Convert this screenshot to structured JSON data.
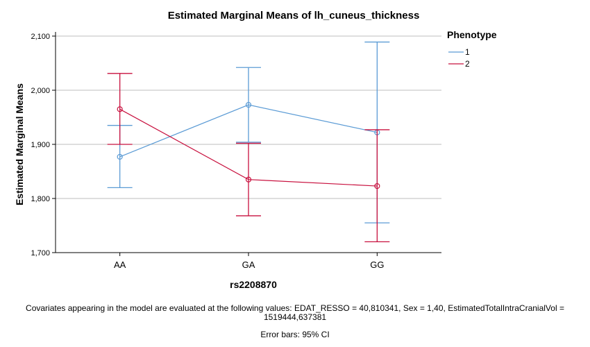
{
  "chart_data": {
    "type": "line",
    "title": "Estimated Marginal Means of lh_cuneus_thickness",
    "xlabel": "rs2208870",
    "ylabel": "Estimated Marginal Means",
    "categories": [
      "AA",
      "GA",
      "GG"
    ],
    "ylim": [
      1700,
      2100
    ],
    "yticks": [
      1700,
      1800,
      1900,
      2000,
      2100
    ],
    "ytick_labels": [
      "1,700",
      "1,800",
      "1,900",
      "2,000",
      "2,100"
    ],
    "grid": "horizontal",
    "legend": {
      "title": "Phenotype",
      "placement": "top-right"
    },
    "series": [
      {
        "name": "1",
        "color": "#5b9bd5",
        "values": [
          1877,
          1973,
          1922
        ],
        "ci_low": [
          1820,
          1904,
          1755
        ],
        "ci_high": [
          1935,
          2042,
          2089
        ]
      },
      {
        "name": "2",
        "color": "#c8103e",
        "values": [
          1965,
          1835,
          1823
        ],
        "ci_low": [
          1900,
          1768,
          1720
        ],
        "ci_high": [
          2031,
          1902,
          1927
        ]
      }
    ]
  },
  "footnotes": {
    "covariates_line1": "Covariates appearing in the model are evaluated at the following values: EDAT_RESSO = 40,810341, Sex = 1,40, EstimatedTotalIntraCranialVol =",
    "covariates_line2": "1519444,637381",
    "errorbars": "Error bars: 95% CI"
  }
}
